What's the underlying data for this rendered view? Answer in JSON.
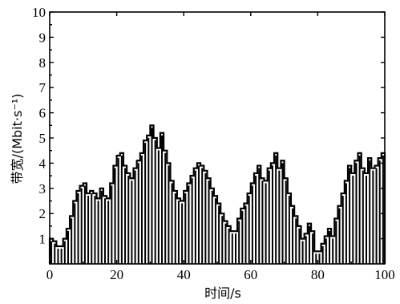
{
  "chart_data": {
    "type": "bar",
    "xlabel": "时间/s",
    "ylabel": "带宽/(Mbit·s⁻¹)",
    "xlim": [
      0,
      100
    ],
    "ylim": [
      0,
      10
    ],
    "xticks": [
      "0",
      "20",
      "40",
      "60",
      "80",
      "100"
    ],
    "yticks": [
      "1",
      "2",
      "3",
      "4",
      "5",
      "6",
      "7",
      "8",
      "9",
      "10"
    ],
    "grid": false,
    "legend": "none",
    "x": [
      0,
      1,
      2,
      3,
      4,
      5,
      6,
      7,
      8,
      9,
      10,
      11,
      12,
      13,
      14,
      15,
      16,
      17,
      18,
      19,
      20,
      21,
      22,
      23,
      24,
      25,
      26,
      27,
      28,
      29,
      30,
      31,
      32,
      33,
      34,
      35,
      36,
      37,
      38,
      39,
      40,
      41,
      42,
      43,
      44,
      45,
      46,
      47,
      48,
      49,
      50,
      51,
      52,
      53,
      54,
      55,
      56,
      57,
      58,
      59,
      60,
      61,
      62,
      63,
      64,
      65,
      66,
      67,
      68,
      69,
      70,
      71,
      72,
      73,
      74,
      75,
      76,
      77,
      78,
      79,
      80,
      81,
      82,
      83,
      84,
      85,
      86,
      87,
      88,
      89,
      90,
      91,
      92,
      93,
      94,
      95,
      96,
      97,
      98,
      99
    ],
    "values": [
      1.0,
      0.9,
      0.7,
      0.7,
      1.0,
      1.4,
      1.9,
      2.5,
      2.9,
      3.1,
      3.2,
      2.8,
      2.9,
      2.8,
      2.6,
      3.0,
      2.7,
      2.6,
      3.2,
      3.9,
      4.3,
      4.4,
      3.9,
      3.6,
      3.4,
      3.8,
      4.1,
      4.4,
      4.9,
      5.1,
      5.5,
      5.0,
      4.6,
      5.2,
      4.5,
      4.0,
      3.3,
      2.9,
      2.6,
      2.5,
      2.9,
      3.2,
      3.5,
      3.8,
      4.0,
      3.9,
      3.7,
      3.4,
      3.0,
      2.7,
      2.4,
      2.0,
      1.7,
      1.5,
      1.3,
      1.3,
      1.8,
      2.2,
      2.4,
      2.8,
      3.2,
      3.6,
      3.9,
      3.4,
      3.3,
      3.8,
      4.0,
      4.4,
      3.8,
      4.1,
      3.4,
      2.8,
      2.3,
      1.9,
      1.5,
      1.0,
      1.2,
      1.6,
      1.3,
      0.5,
      0.5,
      0.8,
      1.1,
      1.4,
      1.1,
      1.8,
      2.3,
      2.8,
      3.3,
      3.9,
      3.6,
      4.1,
      4.4,
      3.8,
      3.6,
      4.2,
      3.8,
      3.9,
      4.2,
      4.4
    ]
  }
}
